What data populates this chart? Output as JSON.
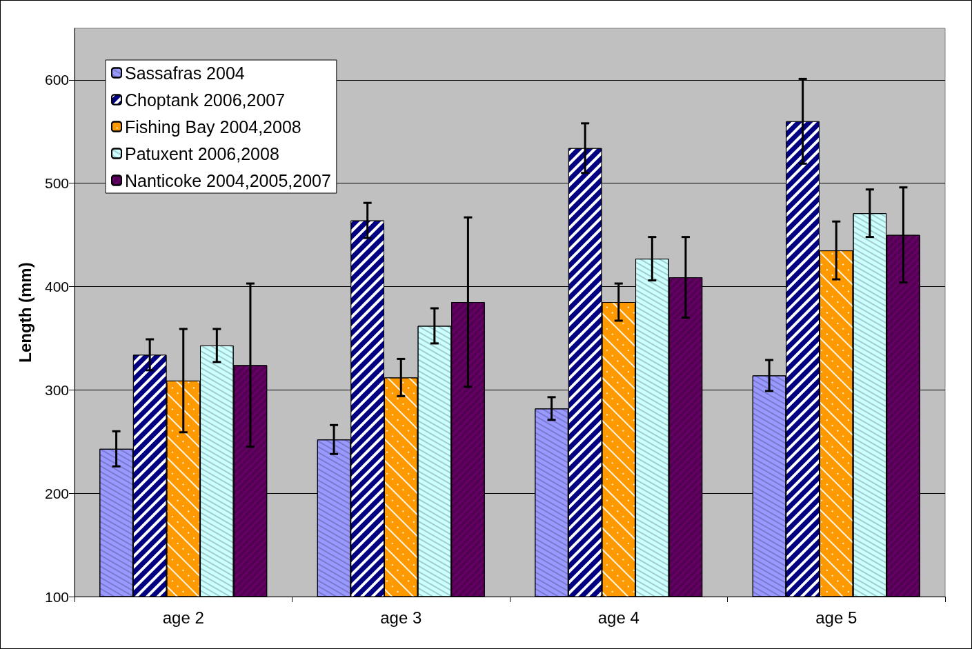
{
  "chart_data": {
    "type": "bar",
    "ylabel": "Length (mm)",
    "categories": [
      "age 2",
      "age 3",
      "age 4",
      "age 5"
    ],
    "series": [
      {
        "name": "Sassafras 2004",
        "color": "#9999ff",
        "values": [
          243,
          252,
          282,
          314
        ],
        "errors": [
          17,
          14,
          11,
          15
        ]
      },
      {
        "name": "Choptank 2006,2007",
        "color": "#000080",
        "values": [
          334,
          464,
          534,
          560
        ],
        "errors": [
          15,
          17,
          24,
          41
        ]
      },
      {
        "name": "Fishing Bay 2004,2008",
        "color": "#ff9900",
        "values": [
          309,
          312,
          385,
          435
        ],
        "errors": [
          50,
          18,
          18,
          28
        ]
      },
      {
        "name": "Patuxent 2006,2008",
        "color": "#ccffff",
        "values": [
          343,
          362,
          427,
          471
        ],
        "errors": [
          16,
          17,
          21,
          23
        ]
      },
      {
        "name": "Nanticoke 2004,2005,2007",
        "color": "#660066",
        "values": [
          324,
          385,
          409,
          450
        ],
        "errors": [
          79,
          82,
          39,
          46
        ]
      }
    ],
    "ylim": [
      100,
      650
    ],
    "yticks": [
      100,
      200,
      300,
      400,
      500,
      600
    ],
    "grid": "y",
    "legend": "top left"
  }
}
